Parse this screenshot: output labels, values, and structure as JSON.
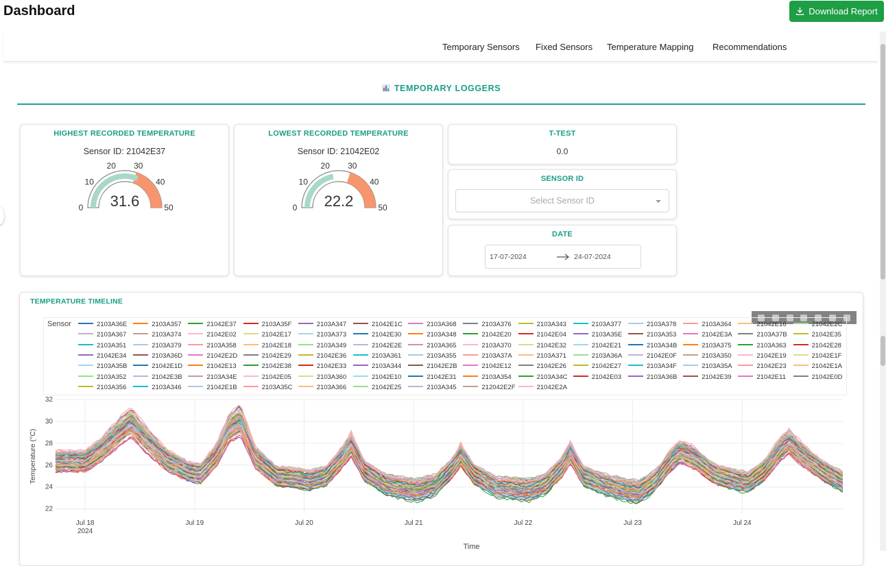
{
  "app": {
    "title": "Dashboard",
    "download_label": "Download Report"
  },
  "nav": {
    "items": [
      "Temporary Sensors",
      "Fixed Sensors",
      "Temperature Mapping",
      "Recommendations"
    ]
  },
  "section": {
    "title": "TEMPORARY LOGGERS"
  },
  "highest": {
    "title": "HIGHEST RECORDED TEMPERATURE",
    "sensor_line": "Sensor ID: 21042E37",
    "value": 31.6,
    "value_text": "31.6"
  },
  "lowest": {
    "title": "LOWEST RECORDED TEMPERATURE",
    "sensor_line": "Sensor ID: 21042E02",
    "value": 22.2,
    "value_text": "22.2"
  },
  "gauge": {
    "min": 0,
    "max": 50,
    "threshold": 30,
    "ticks": [
      "0",
      "10",
      "20",
      "30",
      "40",
      "50"
    ],
    "colors": {
      "bar": "#a8d8c8",
      "danger": "#f7956d",
      "outline": "#888888"
    }
  },
  "ttest": {
    "title": "T-TEST",
    "value": "0.0"
  },
  "sensor_select": {
    "title": "SENSOR ID",
    "placeholder": "Select Sensor ID"
  },
  "date": {
    "title": "DATE",
    "start": "17-07-2024",
    "end": "24-07-2024"
  },
  "timeline": {
    "title": "TEMPERATURE TIMELINE",
    "legend_title": "Sensor"
  },
  "chart_data": {
    "type": "line",
    "xlabel": "Time",
    "ylabel": "Temperature (°C)",
    "ylim": [
      21.6,
      32
    ],
    "y_ticks": [
      "22",
      "24",
      "26",
      "28",
      "30",
      "32"
    ],
    "x_ticks": [
      "Jul 18",
      "Jul 19",
      "Jul 20",
      "Jul 21",
      "Jul 22",
      "Jul 23",
      "Jul 24"
    ],
    "x_tick_year": "2024",
    "grid": true,
    "legend_placement": "top",
    "series_names": [
      "2103A36E",
      "2103A357",
      "21042E37",
      "2103A35F",
      "2103A347",
      "21042E1C",
      "2103A368",
      "2103A376",
      "2103A343",
      "2103A377",
      "2103A378",
      "2103A364",
      "21042E16",
      "21042E2C",
      "2103A367",
      "2103A374",
      "21042E02",
      "21042E17",
      "2103A373",
      "21042E30",
      "2103A348",
      "21042E20",
      "21042E04",
      "2103A35E",
      "2103A353",
      "21042E3A",
      "2103A37B",
      "21042E35",
      "2103A351",
      "2103A379",
      "2103A358",
      "21042E18",
      "2103A349",
      "21042E2E",
      "2103A365",
      "2103A370",
      "21042E32",
      "21042E21",
      "2103A34B",
      "2103A375",
      "2103A363",
      "21042E28",
      "21042E34",
      "2103A36D",
      "21042E2D",
      "21042E29",
      "21042E36",
      "2103A361",
      "2103A355",
      "2103A37A",
      "2103A371",
      "2103A36A",
      "21042E0F",
      "2103A350",
      "21042E19",
      "21042E1F",
      "2103A35B",
      "21042E1D",
      "21042E13",
      "21042E38",
      "21042E33",
      "2103A344",
      "21042E2B",
      "21042E12",
      "21042E26",
      "21042E27",
      "2103A34F",
      "2103A35A",
      "21042E23",
      "21042E1A",
      "2103A352",
      "21042E3B",
      "2103A34E",
      "21042E05",
      "2103A360",
      "21042E10",
      "21042E31",
      "2103A354",
      "2103A34C",
      "21042E03",
      "2103A36B",
      "21042E39",
      "21042E11",
      "21042E0D",
      "2103A356",
      "2103A346",
      "21042E1B",
      "2103A35C",
      "2103A366",
      "21042E25",
      "2103A345",
      "212042E2F",
      "21042E2A"
    ],
    "palette": [
      "#1f77b4",
      "#ff7f0e",
      "#2ca02c",
      "#d62728",
      "#9467bd",
      "#8c564b",
      "#e377c2",
      "#7f7f7f",
      "#bcbd22",
      "#17becf",
      "#aec7e8",
      "#ff9896",
      "#ffbb78",
      "#98df8a",
      "#c5b0d5",
      "#c49c94",
      "#f7b6d2",
      "#dbdb8d",
      "#9edae5"
    ],
    "profile": {
      "x_days": [
        0.0,
        0.15,
        0.32,
        0.42,
        0.55,
        0.75,
        0.95,
        1.05,
        1.2,
        1.32,
        1.42,
        1.55,
        1.75,
        1.95,
        2.05,
        2.2,
        2.35,
        2.43,
        2.55,
        2.75,
        2.95,
        3.05,
        3.2,
        3.35,
        3.43,
        3.55,
        3.75,
        3.95,
        4.05,
        4.2,
        4.35,
        4.43,
        4.55,
        4.75,
        4.95,
        5.05,
        5.2,
        5.35,
        5.43,
        5.55,
        5.75,
        5.95,
        6.05,
        6.2,
        6.35,
        6.43,
        6.55,
        6.75,
        6.95
      ],
      "mid_values": [
        26.4,
        27.5,
        29.2,
        30.0,
        28.5,
        26.5,
        25.4,
        25.2,
        27.0,
        29.5,
        30.2,
        26.8,
        25.0,
        24.8,
        24.6,
        25.0,
        26.8,
        28.0,
        25.5,
        24.2,
        23.8,
        23.7,
        24.2,
        25.7,
        27.0,
        25.2,
        24.0,
        23.8,
        23.7,
        24.2,
        25.8,
        27.2,
        25.0,
        24.2,
        23.7,
        23.5,
        24.5,
        26.5,
        27.3,
        26.8,
        25.2,
        24.6,
        24.4,
        25.5,
        27.6,
        28.2,
        27.0,
        25.4,
        24.3
      ],
      "day_start_offset": -0.27,
      "spread": 1.6
    }
  }
}
